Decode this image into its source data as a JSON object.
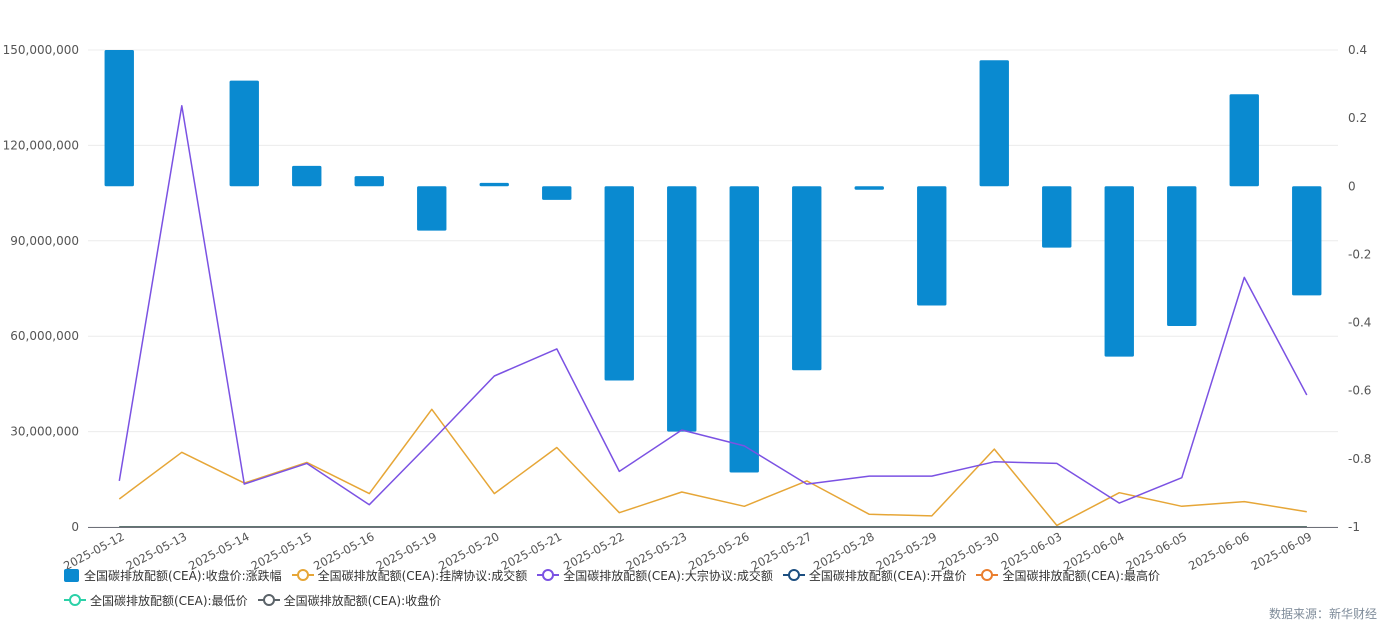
{
  "chart_data": {
    "type": "bar+line",
    "categories": [
      "2025-05-12",
      "2025-05-13",
      "2025-05-14",
      "2025-05-15",
      "2025-05-16",
      "2025-05-19",
      "2025-05-20",
      "2025-05-21",
      "2025-05-22",
      "2025-05-23",
      "2025-05-26",
      "2025-05-27",
      "2025-05-28",
      "2025-05-29",
      "2025-05-30",
      "2025-06-03",
      "2025-06-04",
      "2025-06-05",
      "2025-06-06",
      "2025-06-09"
    ],
    "left_axis": {
      "min": 0,
      "max": 150000000,
      "ticks": [
        "0",
        "30,000,000",
        "60,000,000",
        "90,000,000",
        "120,000,000",
        "150,000,000"
      ]
    },
    "right_axis": {
      "min": -1,
      "max": 0.4,
      "ticks": [
        "-1",
        "-0.8",
        "-0.6",
        "-0.4",
        "-0.2",
        "0",
        "0.2",
        "0.4"
      ]
    },
    "series": [
      {
        "name": "全国碳排放配额(CEA):收盘价:涨跌幅",
        "type": "bar",
        "axis": "right",
        "color": "#0a8ad0",
        "values": [
          0.4,
          null,
          0.31,
          0.06,
          0.03,
          -0.13,
          0.01,
          -0.04,
          -0.57,
          -0.72,
          -0.84,
          -0.54,
          -0.01,
          -0.35,
          0.37,
          -0.18,
          -0.5,
          -0.41,
          0.27,
          -0.32
        ]
      },
      {
        "name": "全国碳排放配额(CEA):挂牌协议:成交额",
        "type": "line",
        "axis": "left",
        "color": "#e6a637",
        "values": [
          8800000,
          23500000,
          13800000,
          20300000,
          10500000,
          37000000,
          10500000,
          25000000,
          4500000,
          11000000,
          6500000,
          14500000,
          4000000,
          3500000,
          24500000,
          500000,
          10800000,
          6500000,
          8000000,
          4800000
        ]
      },
      {
        "name": "全国碳排放配额(CEA):大宗协议:成交额",
        "type": "line",
        "axis": "left",
        "color": "#7b52e3",
        "values": [
          14500000,
          132500000,
          13500000,
          20000000,
          7000000,
          27000000,
          47500000,
          56000000,
          17500000,
          30500000,
          25500000,
          13500000,
          16000000,
          16000000,
          20500000,
          20000000,
          7500000,
          15500000,
          78500000,
          41500000
        ]
      },
      {
        "name": "全国碳排放配额(CEA):开盘价",
        "type": "line",
        "axis": "left",
        "color": "#1c4e80",
        "values": [
          100,
          100,
          100,
          100,
          100,
          100,
          100,
          100,
          100,
          100,
          100,
          100,
          100,
          100,
          100,
          100,
          100,
          100,
          100,
          100
        ]
      },
      {
        "name": "全国碳排放配额(CEA):最高价",
        "type": "line",
        "axis": "left",
        "color": "#ea7e2e",
        "values": [
          100,
          100,
          100,
          100,
          100,
          100,
          100,
          100,
          100,
          100,
          100,
          100,
          100,
          100,
          100,
          100,
          100,
          100,
          100,
          100
        ]
      },
      {
        "name": "全国碳排放配额(CEA):最低价",
        "type": "line",
        "axis": "left",
        "color": "#2bd1a8",
        "values": [
          100,
          100,
          100,
          100,
          100,
          100,
          100,
          100,
          100,
          100,
          100,
          100,
          100,
          100,
          100,
          100,
          100,
          100,
          100,
          100
        ]
      },
      {
        "name": "全国碳排放配额(CEA):收盘价",
        "type": "line",
        "axis": "left",
        "color": "#5b6369",
        "values": [
          100,
          100,
          100,
          100,
          100,
          100,
          100,
          100,
          100,
          100,
          100,
          100,
          100,
          100,
          100,
          100,
          100,
          100,
          100,
          100
        ]
      }
    ],
    "grid": true,
    "legend": "bottom"
  },
  "source": "数据来源：新华财经"
}
